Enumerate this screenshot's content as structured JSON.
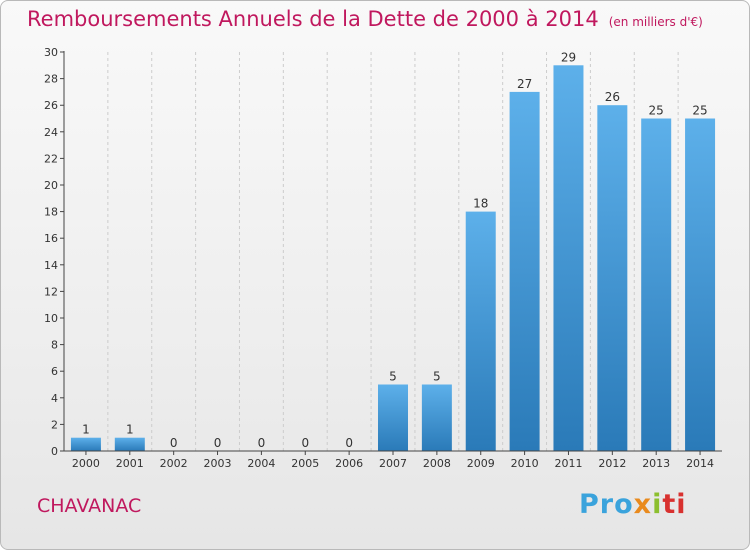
{
  "header": {
    "title": "Remboursements Annuels de la Dette de 2000 à 2014",
    "unit_note": "(en milliers d'€)"
  },
  "footer": {
    "town": "CHAVANAC",
    "logo": [
      "Pro",
      "x",
      "i",
      "ti"
    ]
  },
  "colors": {
    "title": "#c0185e",
    "bar_light": "#5db0ea",
    "bar_dark": "#2a7ab8",
    "axis": "#444444",
    "grid": "#cccccc"
  },
  "chart_data": {
    "type": "bar",
    "categories": [
      "2000",
      "2001",
      "2002",
      "2003",
      "2004",
      "2005",
      "2006",
      "2007",
      "2008",
      "2009",
      "2010",
      "2011",
      "2012",
      "2013",
      "2014"
    ],
    "values": [
      1,
      1,
      0,
      0,
      0,
      0,
      0,
      5,
      5,
      18,
      27,
      29,
      26,
      25,
      25
    ],
    "title": "Remboursements Annuels de la Dette de 2000 à 2014",
    "xlabel": "",
    "ylabel": "",
    "ylim": [
      0,
      30
    ],
    "yticks": [
      0,
      2,
      4,
      6,
      8,
      10,
      12,
      14,
      16,
      18,
      20,
      22,
      24,
      26,
      28,
      30
    ],
    "grid": "vertical dashed lines between categories",
    "data_labels": true,
    "legend": "none"
  }
}
